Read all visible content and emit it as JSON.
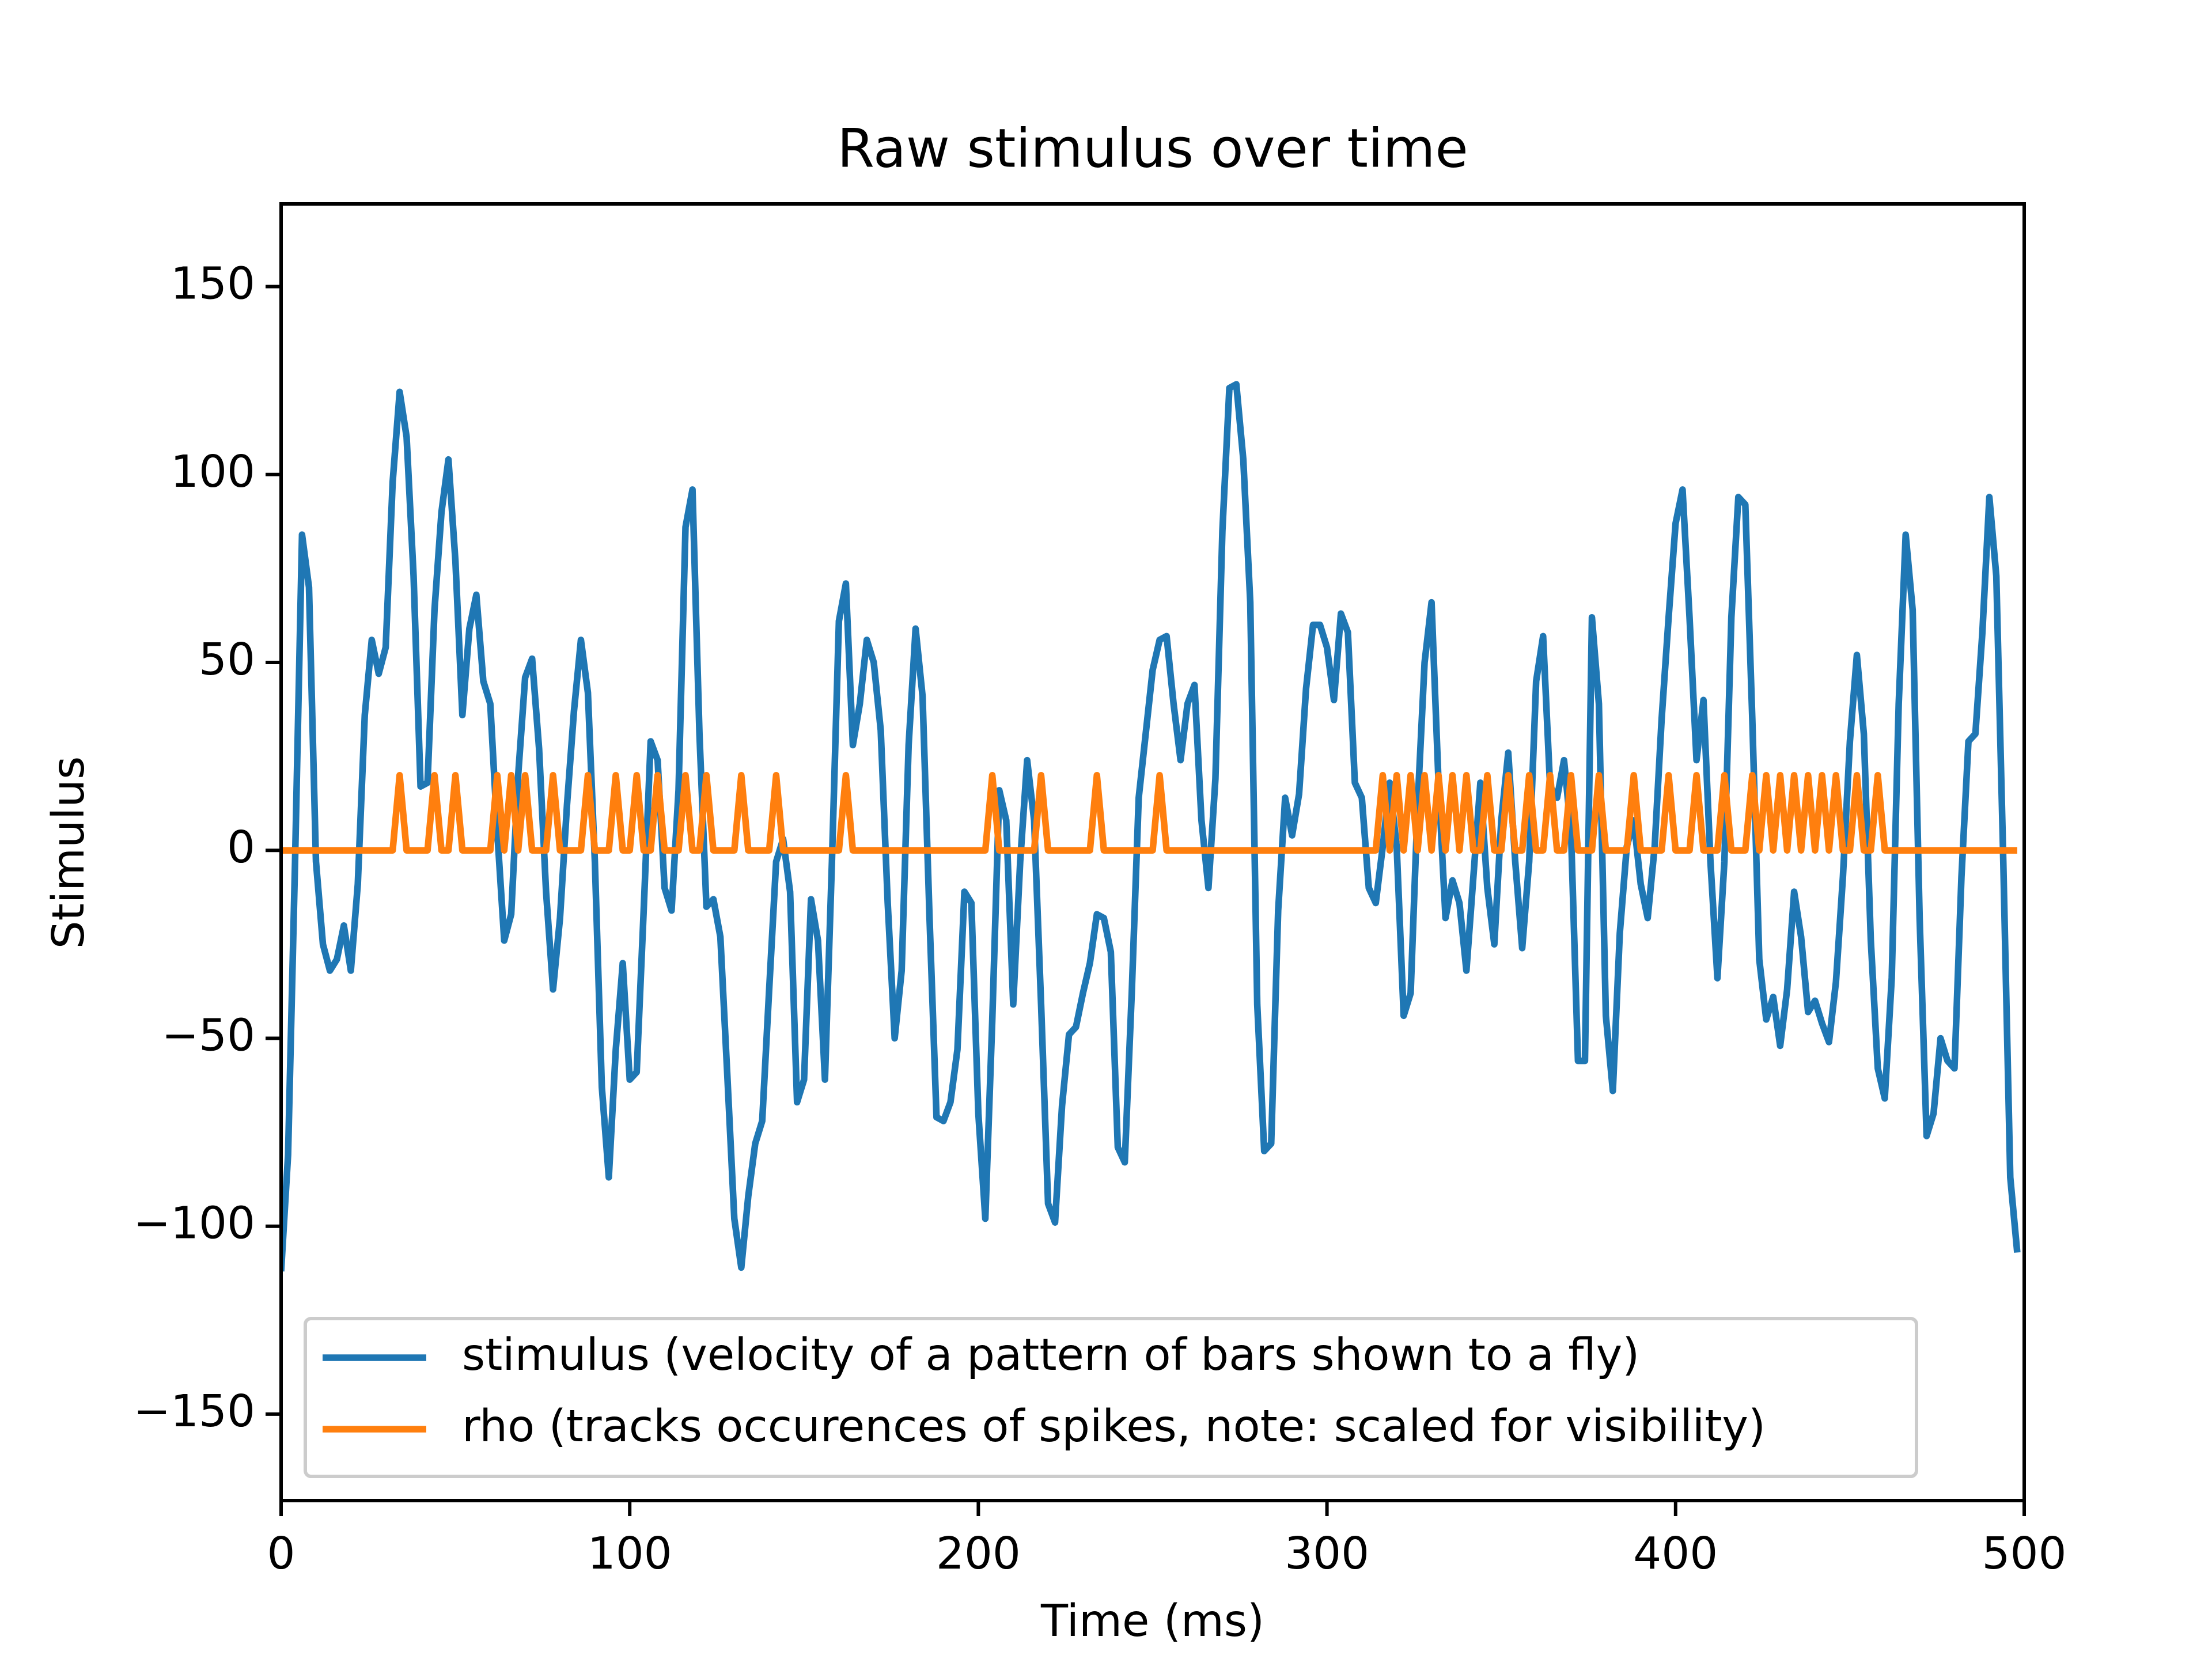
{
  "chart_data": {
    "type": "line",
    "title": "Raw stimulus over time",
    "x_label": "Time (ms)",
    "y_label": "Stimulus",
    "x": [
      0,
      2,
      4,
      6,
      8,
      10,
      12,
      14,
      16,
      18,
      20,
      22,
      24,
      26,
      28,
      30,
      32,
      34,
      36,
      38,
      40,
      42,
      44,
      46,
      48,
      50,
      52,
      54,
      56,
      58,
      60,
      62,
      64,
      66,
      68,
      70,
      72,
      74,
      76,
      78,
      80,
      82,
      84,
      86,
      88,
      90,
      92,
      94,
      96,
      98,
      100,
      102,
      104,
      106,
      108,
      110,
      112,
      114,
      116,
      118,
      120,
      122,
      124,
      126,
      128,
      130,
      132,
      134,
      136,
      138,
      140,
      142,
      144,
      146,
      148,
      150,
      152,
      154,
      156,
      158,
      160,
      162,
      164,
      166,
      168,
      170,
      172,
      174,
      176,
      178,
      180,
      182,
      184,
      186,
      188,
      190,
      192,
      194,
      196,
      198,
      200,
      202,
      204,
      206,
      208,
      210,
      212,
      214,
      216,
      218,
      220,
      222,
      224,
      226,
      228,
      230,
      232,
      234,
      236,
      238,
      240,
      242,
      244,
      246,
      248,
      250,
      252,
      254,
      256,
      258,
      260,
      262,
      264,
      266,
      268,
      270,
      272,
      274,
      276,
      278,
      280,
      282,
      284,
      286,
      288,
      290,
      292,
      294,
      296,
      298,
      300,
      302,
      304,
      306,
      308,
      310,
      312,
      314,
      316,
      318,
      320,
      322,
      324,
      326,
      328,
      330,
      332,
      334,
      336,
      338,
      340,
      342,
      344,
      346,
      348,
      350,
      352,
      354,
      356,
      358,
      360,
      362,
      364,
      366,
      368,
      370,
      372,
      374,
      376,
      378,
      380,
      382,
      384,
      386,
      388,
      390,
      392,
      394,
      396,
      398,
      400,
      402,
      404,
      406,
      408,
      410,
      412,
      414,
      416,
      418,
      420,
      422,
      424,
      426,
      428,
      430,
      432,
      434,
      436,
      438,
      440,
      442,
      444,
      446,
      448,
      450,
      452,
      454,
      456,
      458,
      460,
      462,
      464,
      466,
      468,
      470,
      472,
      474,
      476,
      478,
      480,
      482,
      484,
      486,
      488,
      490,
      492,
      494,
      496,
      498
    ],
    "series": [
      {
        "name": "stimulus (velocity of a pattern of bars shown to a fly)",
        "color": "#1f77b4",
        "values": [
          -112,
          -81,
          -3,
          84,
          70,
          -3,
          -25,
          -32,
          -29,
          -20,
          -32,
          -9,
          36,
          56,
          47,
          54,
          98,
          122,
          110,
          73,
          17,
          18,
          64,
          90,
          104,
          77,
          36,
          59,
          68,
          45,
          39,
          5,
          -24,
          -17,
          20,
          46,
          51,
          27,
          -11,
          -37,
          -18,
          12,
          37,
          56,
          42,
          -3,
          -63,
          -87,
          -53,
          -30,
          -61,
          -59,
          -16,
          29,
          24,
          -10,
          -16,
          16,
          86,
          96,
          31,
          -15,
          -13,
          -23,
          -60,
          -98,
          -111,
          -92,
          -78,
          -72,
          -37,
          -3,
          3,
          -11,
          -67,
          -61,
          -13,
          -24,
          -61,
          -3,
          61,
          71,
          28,
          39,
          56,
          50,
          32,
          -14,
          -50,
          -32,
          28,
          59,
          41,
          -18,
          -71,
          -72,
          -67,
          -53,
          -11,
          -14,
          -70,
          -98,
          -45,
          16,
          8,
          -41,
          -3,
          24,
          8,
          -41,
          -94,
          -99,
          -68,
          -49,
          -47,
          -38,
          -30,
          -17,
          -18,
          -27,
          -79,
          -83,
          -38,
          14,
          31,
          48,
          56,
          57,
          39,
          24,
          39,
          44,
          8,
          -10,
          19,
          85,
          123,
          124,
          104,
          66,
          -41,
          -80,
          -78,
          -16,
          14,
          4,
          15,
          43,
          60,
          60,
          54,
          40,
          63,
          58,
          18,
          14,
          -10,
          -14,
          1,
          18,
          1,
          -44,
          -38,
          12,
          50,
          66,
          18,
          -18,
          -8,
          -14,
          -32,
          -7,
          18,
          -10,
          -25,
          8,
          26,
          -3,
          -26,
          -3,
          45,
          57,
          17,
          14,
          24,
          5,
          -56,
          -56,
          62,
          39,
          -44,
          -64,
          -22,
          1,
          8,
          -9,
          -18,
          1,
          35,
          62,
          87,
          96,
          62,
          24,
          40,
          -3,
          -34,
          -3,
          62,
          94,
          92,
          35,
          -29,
          -45,
          -39,
          -52,
          -37,
          -11,
          -23,
          -43,
          -40,
          -46,
          -51,
          -35,
          -7,
          29,
          52,
          31,
          -24,
          -58,
          -66,
          -34,
          39,
          84,
          64,
          -18,
          -76,
          -70,
          -50,
          -56,
          -58,
          -7,
          29,
          31,
          58,
          94,
          73,
          -3,
          -87,
          -107
        ]
      },
      {
        "name": "rho (tracks occurences of spikes, note: scaled for visibility)",
        "color": "#ff7f0e",
        "values": [
          0,
          0,
          0,
          0,
          0,
          0,
          0,
          0,
          0,
          0,
          0,
          0,
          0,
          0,
          0,
          0,
          0,
          20,
          0,
          0,
          0,
          0,
          20,
          0,
          0,
          20,
          0,
          0,
          0,
          0,
          0,
          20,
          0,
          20,
          0,
          20,
          0,
          0,
          0,
          20,
          0,
          0,
          0,
          0,
          20,
          0,
          0,
          0,
          20,
          0,
          0,
          20,
          0,
          0,
          20,
          0,
          0,
          0,
          20,
          0,
          0,
          20,
          0,
          0,
          0,
          0,
          20,
          0,
          0,
          0,
          0,
          20,
          0,
          0,
          0,
          0,
          0,
          0,
          0,
          0,
          0,
          20,
          0,
          0,
          0,
          0,
          0,
          0,
          0,
          0,
          0,
          0,
          0,
          0,
          0,
          0,
          0,
          0,
          0,
          0,
          0,
          0,
          20,
          0,
          0,
          0,
          0,
          0,
          0,
          20,
          0,
          0,
          0,
          0,
          0,
          0,
          0,
          20,
          0,
          0,
          0,
          0,
          0,
          0,
          0,
          0,
          20,
          0,
          0,
          0,
          0,
          0,
          0,
          0,
          0,
          0,
          0,
          0,
          0,
          0,
          0,
          0,
          0,
          0,
          0,
          0,
          0,
          0,
          0,
          0,
          0,
          0,
          0,
          0,
          0,
          0,
          0,
          0,
          20,
          0,
          20,
          0,
          20,
          0,
          20,
          0,
          20,
          0,
          20,
          0,
          20,
          0,
          0,
          20,
          0,
          0,
          20,
          0,
          0,
          20,
          0,
          0,
          20,
          0,
          0,
          20,
          0,
          0,
          0,
          20,
          0,
          0,
          0,
          0,
          20,
          0,
          0,
          0,
          0,
          20,
          0,
          0,
          0,
          20,
          0,
          0,
          0,
          20,
          0,
          0,
          0,
          20,
          0,
          20,
          0,
          20,
          0,
          20,
          0,
          20,
          0,
          20,
          0,
          20,
          0,
          0,
          20,
          0,
          0,
          20,
          0,
          0,
          0,
          0,
          0,
          0,
          0,
          0,
          0,
          0,
          0,
          0,
          0,
          0,
          0,
          0,
          0,
          0,
          0,
          0
        ]
      }
    ],
    "xlim": [
      0,
      500
    ],
    "xticks": [
      0,
      100,
      200,
      300,
      400,
      500
    ],
    "ylim": [
      -173,
      172
    ],
    "yticks": [
      {
        "value": -150,
        "label": "−150"
      },
      {
        "value": -100,
        "label": "−100"
      },
      {
        "value": -50,
        "label": "−50"
      },
      0,
      50,
      100,
      150
    ],
    "grid": false,
    "legend": "lower left"
  }
}
